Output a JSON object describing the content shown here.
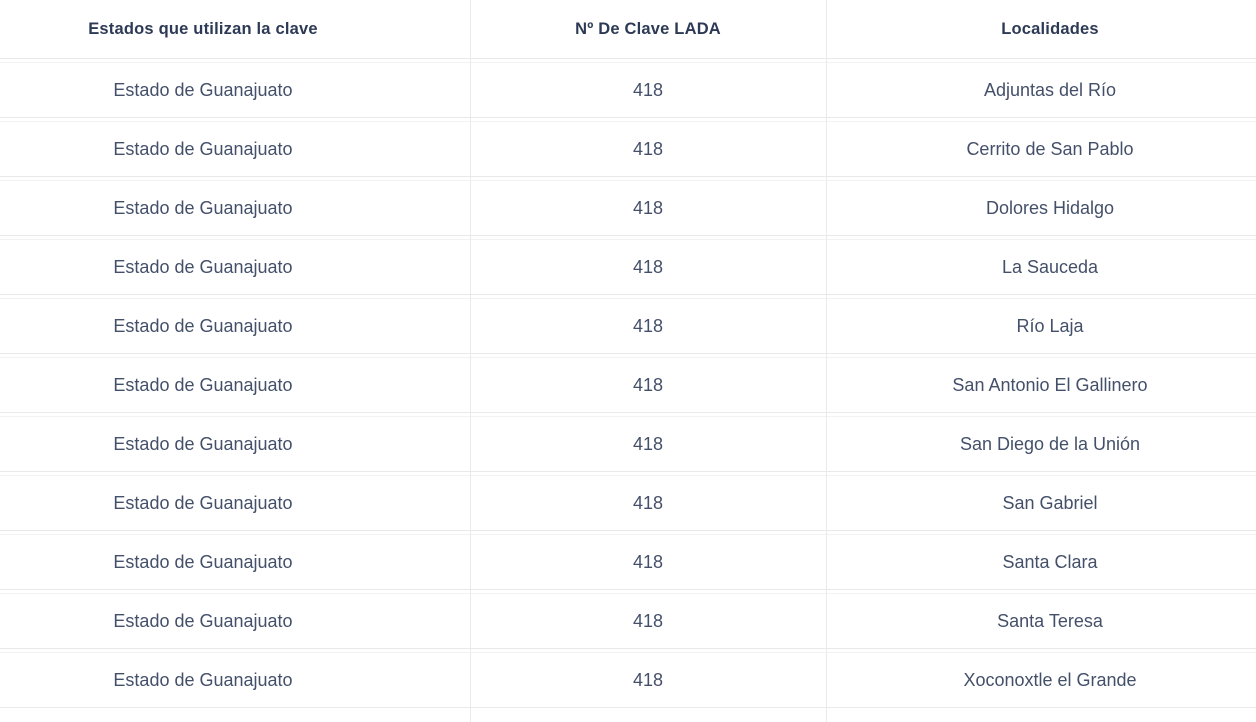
{
  "colors": {
    "header_text": "#2d3a55",
    "body_text": "#44506a",
    "row_border": "#e9e9e9",
    "column_divider": "#e7ebec",
    "background": "#ffffff"
  },
  "table": {
    "columns": {
      "estado": "Estados que utilizan la clave",
      "lada": "Nº De Clave LADA",
      "localidad": "Localidades"
    },
    "rows": [
      {
        "estado": "Estado de Guanajuato",
        "lada": "418",
        "localidad": "Adjuntas del Río"
      },
      {
        "estado": "Estado de Guanajuato",
        "lada": "418",
        "localidad": "Cerrito de San Pablo"
      },
      {
        "estado": "Estado de Guanajuato",
        "lada": "418",
        "localidad": "Dolores Hidalgo"
      },
      {
        "estado": "Estado de Guanajuato",
        "lada": "418",
        "localidad": "La Sauceda"
      },
      {
        "estado": "Estado de Guanajuato",
        "lada": "418",
        "localidad": "Río Laja"
      },
      {
        "estado": "Estado de Guanajuato",
        "lada": "418",
        "localidad": "San Antonio El Gallinero"
      },
      {
        "estado": "Estado de Guanajuato",
        "lada": "418",
        "localidad": "San Diego de la Unión"
      },
      {
        "estado": "Estado de Guanajuato",
        "lada": "418",
        "localidad": "San Gabriel"
      },
      {
        "estado": "Estado de Guanajuato",
        "lada": "418",
        "localidad": "Santa Clara"
      },
      {
        "estado": "Estado de Guanajuato",
        "lada": "418",
        "localidad": "Santa Teresa"
      },
      {
        "estado": "Estado de Guanajuato",
        "lada": "418",
        "localidad": "Xoconoxtle el Grande"
      }
    ]
  }
}
